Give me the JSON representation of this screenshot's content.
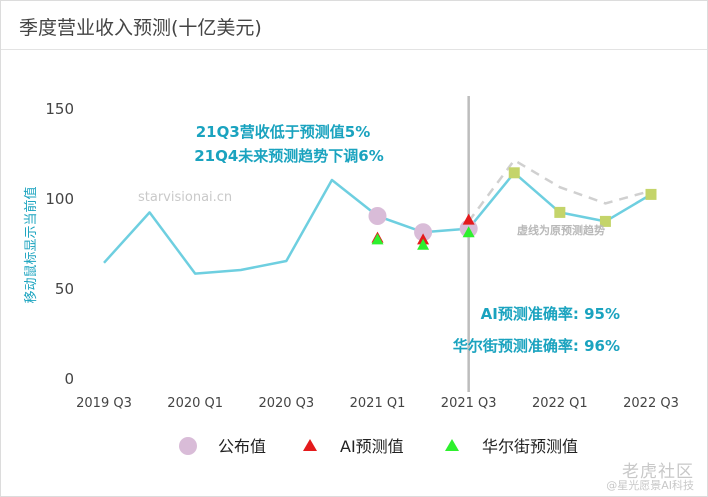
{
  "page": {
    "title": "季度营业收入预测(十亿美元)"
  },
  "chart_data": {
    "type": "line",
    "title": "季度营业收入预测(十亿美元)",
    "ylabel": "移动鼠标显示当前值",
    "xlabel": "",
    "ylim": [
      0,
      160
    ],
    "yticks": [
      0,
      50,
      100,
      150
    ],
    "x_tick_labels": [
      "2019 Q3",
      "2020 Q1",
      "2020 Q3",
      "2021 Q1",
      "2021 Q3",
      "2022 Q1",
      "2022 Q3"
    ],
    "quarters": [
      "2019 Q3",
      "2019 Q4",
      "2020 Q1",
      "2020 Q2",
      "2020 Q3",
      "2020 Q4",
      "2021 Q1",
      "2021 Q2",
      "2021 Q3",
      "2021 Q4",
      "2022 Q1",
      "2022 Q2",
      "2022 Q3"
    ],
    "grid": false,
    "legend_position": "bottom",
    "series": [
      {
        "name": "",
        "kind": "line",
        "color": "#6ecfe0",
        "x": [
          "2019 Q3",
          "2019 Q4",
          "2020 Q1",
          "2020 Q2",
          "2020 Q3",
          "2020 Q4",
          "2021 Q1",
          "2021 Q2",
          "2021 Q3",
          "2021 Q4",
          "2022 Q1",
          "2022 Q2",
          "2022 Q3"
        ],
        "values": [
          64,
          92,
          58,
          60,
          65,
          110,
          90,
          81,
          83,
          114,
          92,
          87,
          102
        ]
      },
      {
        "name": "",
        "kind": "dashed",
        "color": "#d0d0d0",
        "x": [
          "2021 Q3",
          "2021 Q4",
          "2022 Q1",
          "2022 Q2",
          "2022 Q3"
        ],
        "values": [
          87,
          121,
          106,
          97,
          104
        ]
      },
      {
        "name": "公布值",
        "kind": "circle",
        "color": "#d9bcd8",
        "x": [
          "2021 Q1",
          "2021 Q2",
          "2021 Q3"
        ],
        "values": [
          90,
          81,
          83
        ]
      },
      {
        "name": "AI预测值",
        "kind": "triangle",
        "color": "#e41a1c",
        "x": [
          "2021 Q1",
          "2021 Q2",
          "2021 Q3"
        ],
        "values": [
          78,
          77,
          88
        ]
      },
      {
        "name": "华尔街预测值",
        "kind": "triangle",
        "color": "#2ef02e",
        "x": [
          "2021 Q1",
          "2021 Q2",
          "2021 Q3"
        ],
        "values": [
          77,
          74,
          81
        ]
      },
      {
        "name": "",
        "kind": "square",
        "color": "#c4d46a",
        "x": [
          "2021 Q4",
          "2022 Q1",
          "2022 Q2",
          "2022 Q3"
        ],
        "values": [
          114,
          92,
          87,
          102
        ]
      }
    ],
    "vertical_marker": "2021 Q3",
    "annotations": {
      "note_line1": "21Q3营收低于预测值5%",
      "note_line2": "21Q4未来预测趋势下调6%",
      "dashed_note": "虚线为原预测趋势",
      "ai_accuracy": "AI预测准确率:  95%",
      "ws_accuracy": "华尔街预测准确率:  96%",
      "watermark": "starvisionai.cn"
    },
    "colors": {
      "accent_text": "#1aa3bf",
      "line": "#6ecfe0"
    }
  },
  "legend": {
    "items": [
      {
        "label": "公布值"
      },
      {
        "label": "AI预测值"
      },
      {
        "label": "华尔街预测值"
      }
    ]
  },
  "watermark": {
    "line1": "老虎社区",
    "line2": "@星光愿景AI科技"
  }
}
